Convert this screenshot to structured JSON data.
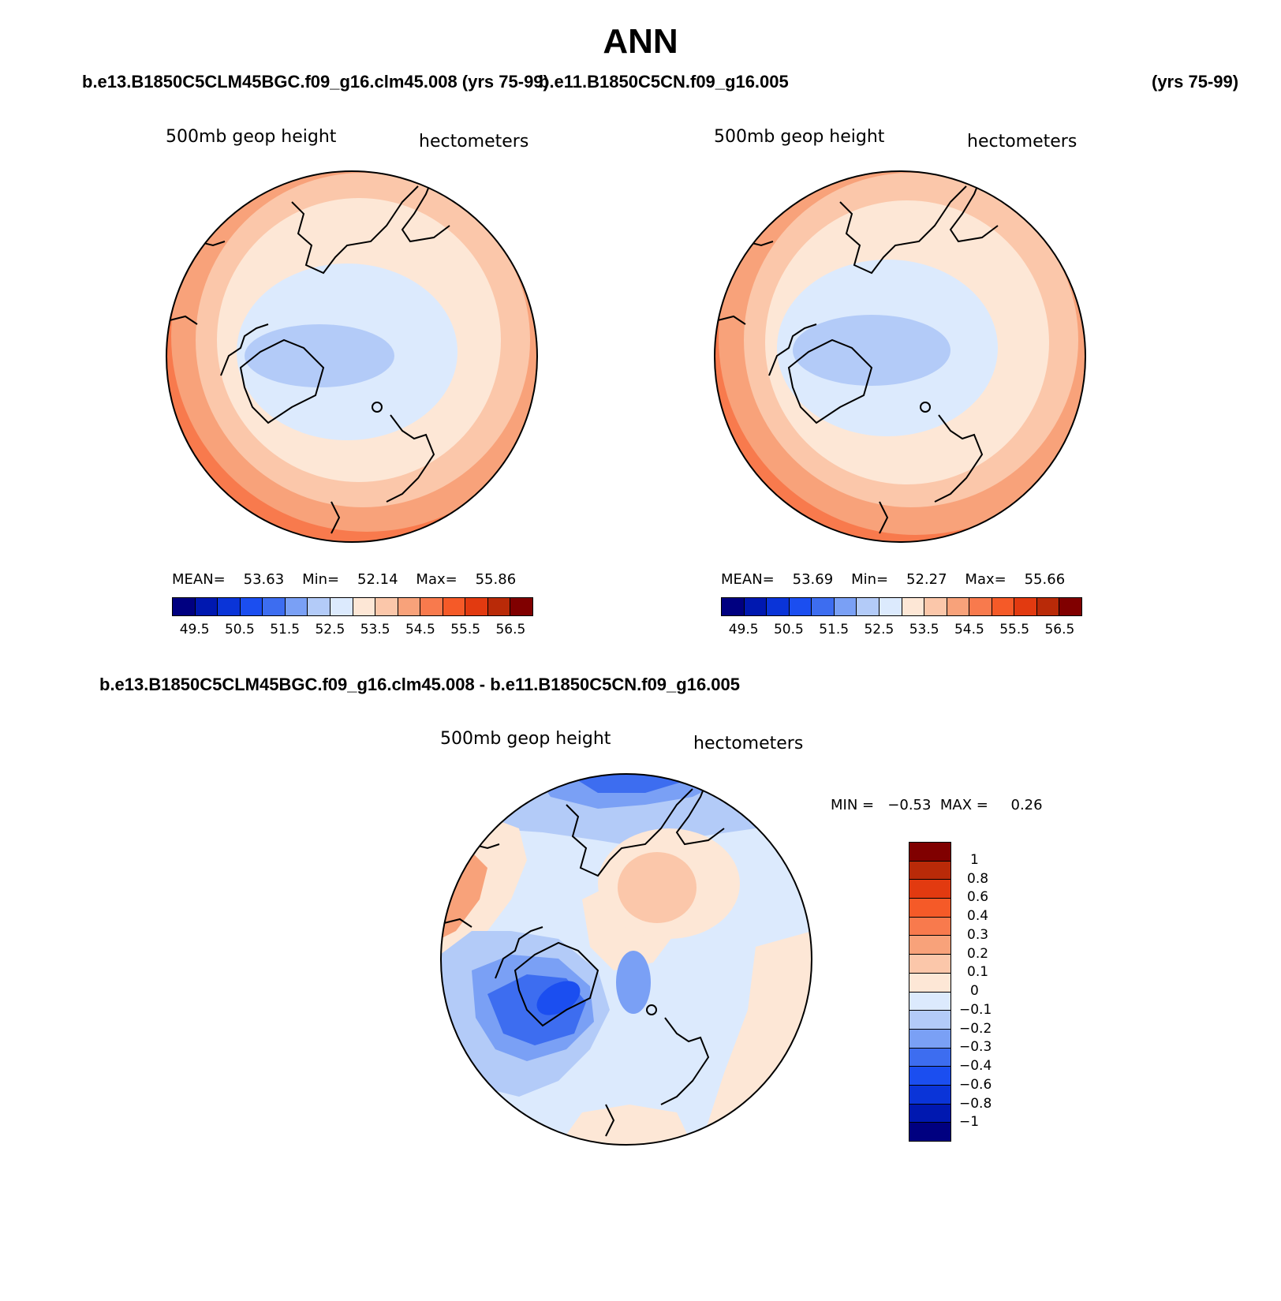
{
  "title": "ANN",
  "case_a": "b.e13.B1850C5CLM45BGC.f09_g16.clm45.008 (yrs 75-99)",
  "case_b": "b.e11.B1850C5CN.f09_g16.005",
  "case_b_years": "(yrs 75-99)",
  "diff_title": "b.e13.B1850C5CLM45BGC.f09_g16.clm45.008 - b.e11.B1850C5CN.f09_g16.005",
  "panel_left": "500mb geop height",
  "panel_units": "hectometers",
  "colors_abs": [
    "#000080",
    "#0018b0",
    "#0a34d8",
    "#1b4ef0",
    "#3d6df0",
    "#7aa0f5",
    "#b3cbf8",
    "#dceafd",
    "#fde7d6",
    "#fbc7aa",
    "#f8a27a",
    "#f87a4d",
    "#f55a28",
    "#e23a10",
    "#b92a08",
    "#800000"
  ],
  "colors_diff": [
    "#000080",
    "#0018b0",
    "#0a34d8",
    "#1b4ef0",
    "#3d6df0",
    "#7aa0f5",
    "#b3cbf8",
    "#dceafd",
    "#fde7d6",
    "#fbc7aa",
    "#f8a27a",
    "#f87a4d",
    "#f55a28",
    "#e23a10",
    "#b92a08",
    "#800000"
  ],
  "abs_ticks": [
    "49.5",
    "50.5",
    "51.5",
    "52.5",
    "53.5",
    "54.5",
    "55.5",
    "56.5"
  ],
  "diff_ticks": [
    "1",
    "0.8",
    "0.6",
    "0.4",
    "0.3",
    "0.2",
    "0.1",
    "0",
    "−0.1",
    "−0.2",
    "−0.3",
    "−0.4",
    "−0.6",
    "−0.8",
    "−1"
  ],
  "stats_a": {
    "mean_label": "MEAN=",
    "mean": "53.63",
    "min_label": "Min=",
    "min": "52.14",
    "max_label": "Max=",
    "max": "55.86"
  },
  "stats_b": {
    "mean_label": "MEAN=",
    "mean": "53.69",
    "min_label": "Min=",
    "min": "52.27",
    "max_label": "Max=",
    "max": "55.66"
  },
  "stats_diff": {
    "min_label": "MIN =",
    "min": "−0.53",
    "max_label": "MAX =",
    "max": "0.26"
  },
  "chart_data": [
    {
      "type": "heatmap",
      "projection": "north polar stereographic",
      "field": "500mb geop height",
      "units": "hectometers",
      "case": "b.e13.B1850C5CLM45BGC.f09_g16.clm45.008",
      "years": "75-99",
      "mean": 53.63,
      "min": 52.14,
      "max": 55.86,
      "levels": [
        49.5,
        50,
        50.5,
        51,
        51.5,
        52,
        52.5,
        53,
        53.5,
        54,
        54.5,
        55,
        55.5,
        56,
        56.5
      ]
    },
    {
      "type": "heatmap",
      "projection": "north polar stereographic",
      "field": "500mb geop height",
      "units": "hectometers",
      "case": "b.e11.B1850C5CN.f09_g16.005",
      "years": "75-99",
      "mean": 53.69,
      "min": 52.27,
      "max": 55.66,
      "levels": [
        49.5,
        50,
        50.5,
        51,
        51.5,
        52,
        52.5,
        53,
        53.5,
        54,
        54.5,
        55,
        55.5,
        56,
        56.5
      ]
    },
    {
      "type": "heatmap",
      "projection": "north polar stereographic",
      "field": "500mb geop height difference",
      "units": "hectometers",
      "min": -0.53,
      "max": 0.26,
      "levels": [
        -1,
        -0.8,
        -0.6,
        -0.4,
        -0.3,
        -0.2,
        -0.1,
        0,
        0.1,
        0.2,
        0.3,
        0.4,
        0.6,
        0.8,
        1
      ]
    }
  ]
}
